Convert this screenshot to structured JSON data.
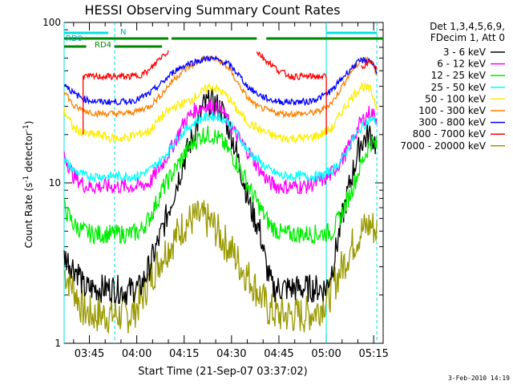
{
  "chart_data": {
    "type": "line",
    "title": "HESSI Observing Summary Count Rates",
    "xlabel": "Start Time (21-Sep-07 03:37:02)",
    "ylabel": "Count Rate (s⁻¹ detector⁻¹)",
    "ylabel_main": "Count Rate (s",
    "ylabel_sup1": "-1",
    "ylabel_mid": " detector",
    "ylabel_sup2": "-1",
    "ylabel_end": ")",
    "yscale": "log",
    "ylim": [
      1,
      100
    ],
    "yticks": [
      "1",
      "10",
      "100"
    ],
    "xlim_minutes": [
      217,
      318
    ],
    "xticks": [
      {
        "label": "03:45",
        "minute": 225
      },
      {
        "label": "04:00",
        "minute": 240
      },
      {
        "label": "04:15",
        "minute": 255
      },
      {
        "label": "04:30",
        "minute": 270
      },
      {
        "label": "04:45",
        "minute": 285
      },
      {
        "label": "05:00",
        "minute": 300
      },
      {
        "label": "05:15",
        "minute": 315
      }
    ],
    "legend_header": [
      "Det 1,3,4,5,6,9,",
      "FDecim 1, Att 0"
    ],
    "legend_position": "right",
    "series": [
      {
        "name": "3 - 6 keV",
        "color": "#000000",
        "x": [
          217,
          220,
          222,
          223,
          226,
          230,
          233,
          237,
          239,
          241,
          244,
          248,
          252,
          255,
          258,
          261,
          264,
          267,
          270,
          273,
          276,
          279,
          281,
          283,
          286,
          289,
          292,
          295,
          297,
          300,
          302,
          305,
          308,
          311,
          314,
          316
        ],
        "y": [
          3.5,
          3.0,
          2.7,
          2.2,
          2.2,
          2.2,
          2.2,
          2.1,
          2.2,
          2.2,
          3.0,
          5.0,
          9.0,
          14,
          20,
          30,
          32,
          28,
          20,
          12,
          7.0,
          5.0,
          3.0,
          2.2,
          2.2,
          2.2,
          2.2,
          2.2,
          2.2,
          2.2,
          3.0,
          6.0,
          11,
          18,
          20,
          17
        ]
      },
      {
        "name": "6 - 12 keV",
        "color": "#ff00ff",
        "x": [
          217,
          220,
          224,
          228,
          232,
          236,
          240,
          244,
          248,
          252,
          255,
          258,
          261,
          264,
          267,
          270,
          273,
          276,
          279,
          282,
          285,
          289,
          293,
          297,
          301,
          305,
          308,
          311,
          314,
          316
        ],
        "y": [
          15,
          11,
          9.5,
          9.5,
          9.5,
          9.5,
          9.5,
          10,
          13,
          18,
          24,
          28,
          30,
          30,
          28,
          22,
          18,
          15,
          12,
          10,
          9.5,
          9.5,
          9.5,
          10,
          11,
          14,
          18,
          24,
          28,
          25
        ]
      },
      {
        "name": "12 - 25 keV",
        "color": "#00ee00",
        "x": [
          217,
          220,
          223,
          226,
          230,
          234,
          238,
          241,
          244,
          248,
          252,
          255,
          258,
          261,
          264,
          267,
          270,
          273,
          276,
          279,
          282,
          286,
          290,
          294,
          298,
          302,
          305,
          308,
          311,
          314,
          316
        ],
        "y": [
          7.0,
          5.5,
          5.0,
          4.8,
          4.8,
          4.8,
          4.8,
          5.0,
          6.0,
          9.0,
          12,
          15,
          18,
          20,
          20,
          18,
          15,
          12,
          9.0,
          7.0,
          5.5,
          4.8,
          4.8,
          4.8,
          4.8,
          5.0,
          6.5,
          9.0,
          13,
          18,
          17
        ]
      },
      {
        "name": "25 - 50 keV",
        "color": "#00ffff",
        "x": [
          217,
          220,
          224,
          228,
          232,
          236,
          240,
          244,
          248,
          252,
          256,
          260,
          263,
          266,
          269,
          272,
          275,
          278,
          282,
          286,
          290,
          294,
          298,
          302,
          305,
          308,
          311,
          314,
          316
        ],
        "y": [
          14,
          12,
          11,
          11,
          11,
          11,
          11,
          12,
          14,
          18,
          22,
          25,
          26,
          26,
          24,
          20,
          16,
          14,
          12,
          11,
          11,
          11,
          11,
          12,
          14,
          18,
          22,
          25,
          24
        ]
      },
      {
        "name": "50 - 100 keV",
        "color": "#ffee00",
        "x": [
          217,
          220,
          224,
          228,
          232,
          236,
          240,
          244,
          248,
          252,
          256,
          260,
          263,
          266,
          269,
          272,
          275,
          278,
          282,
          286,
          290,
          294,
          298,
          302,
          305,
          308,
          311,
          314,
          316
        ],
        "y": [
          28,
          22,
          20,
          20,
          19,
          19,
          20,
          21,
          26,
          30,
          32,
          36,
          40,
          38,
          34,
          28,
          24,
          22,
          20,
          19,
          19,
          19,
          20,
          22,
          28,
          34,
          40,
          38,
          30
        ]
      },
      {
        "name": "100 - 300 keV",
        "color": "#ff8000",
        "x": [
          217,
          220,
          224,
          228,
          232,
          236,
          240,
          244,
          248,
          252,
          256,
          260,
          263,
          266,
          269,
          272,
          275,
          278,
          282,
          286,
          290,
          294,
          298,
          302,
          305,
          308,
          311,
          314,
          316
        ],
        "y": [
          38,
          30,
          28,
          27,
          27,
          27,
          28,
          30,
          36,
          45,
          52,
          58,
          60,
          58,
          52,
          42,
          34,
          30,
          28,
          27,
          27,
          27,
          28,
          32,
          40,
          50,
          58,
          58,
          48
        ]
      },
      {
        "name": "300 - 800 keV",
        "color": "#0000ff",
        "x": [
          217,
          220,
          224,
          228,
          232,
          236,
          240,
          244,
          248,
          252,
          256,
          260,
          263,
          266,
          269,
          272,
          275,
          278,
          282,
          286,
          290,
          294,
          298,
          302,
          305,
          308,
          311,
          314,
          316
        ],
        "y": [
          42,
          36,
          33,
          32,
          32,
          32,
          33,
          36,
          42,
          50,
          55,
          58,
          60,
          58,
          55,
          48,
          40,
          36,
          33,
          32,
          32,
          32,
          34,
          38,
          45,
          52,
          58,
          58,
          50
        ]
      },
      {
        "name": "800 - 7000 keV",
        "color": "#ff0000",
        "x": [
          223,
          226,
          230,
          234,
          238,
          241,
          244,
          246,
          248,
          250
        ],
        "y": [
          46,
          46,
          46,
          46,
          46,
          47,
          50,
          56,
          62,
          66
        ],
        "x2": [
          278,
          281,
          285,
          289,
          293,
          297,
          300
        ],
        "y2": [
          66,
          58,
          50,
          46,
          46,
          46,
          46
        ],
        "x3": [
          311,
          313,
          315,
          316
        ],
        "y3": [
          52,
          56,
          55,
          50
        ]
      },
      {
        "name": "7000 - 20000 keV",
        "color": "#999900",
        "x": [
          217,
          220,
          223,
          226,
          230,
          234,
          238,
          241,
          244,
          248,
          252,
          255,
          258,
          261,
          264,
          267,
          270,
          273,
          276,
          279,
          282,
          285,
          289,
          293,
          297,
          301,
          305,
          308,
          311,
          314,
          316
        ],
        "y": [
          2.8,
          2.2,
          1.6,
          1.5,
          1.5,
          1.5,
          1.5,
          1.8,
          2.5,
          3.5,
          4.5,
          5.5,
          6.0,
          6.0,
          5.5,
          4.5,
          3.8,
          3.0,
          2.5,
          2.0,
          1.6,
          1.5,
          1.5,
          1.5,
          1.6,
          2.0,
          3.0,
          4.0,
          5.0,
          5.5,
          5.0
        ]
      }
    ],
    "annotations": {
      "rd0_label": "RD0",
      "rd4_label": "RD4",
      "n_label": "N",
      "date_stamp": "3-Feb-2010 14:19"
    },
    "flag_bars": {
      "cyan_top": [
        [
          217,
          231
        ],
        [
          300,
          316
        ]
      ],
      "green_upper": [
        [
          217,
          250
        ],
        [
          251,
          278
        ],
        [
          281,
          300
        ],
        [
          300,
          318
        ]
      ],
      "green_lower": [
        [
          217,
          224
        ],
        [
          233,
          248
        ]
      ]
    },
    "vertical_markers": {
      "cyan_solid": [
        217,
        300
      ],
      "cyan_dashed": [
        233,
        316
      ]
    }
  }
}
